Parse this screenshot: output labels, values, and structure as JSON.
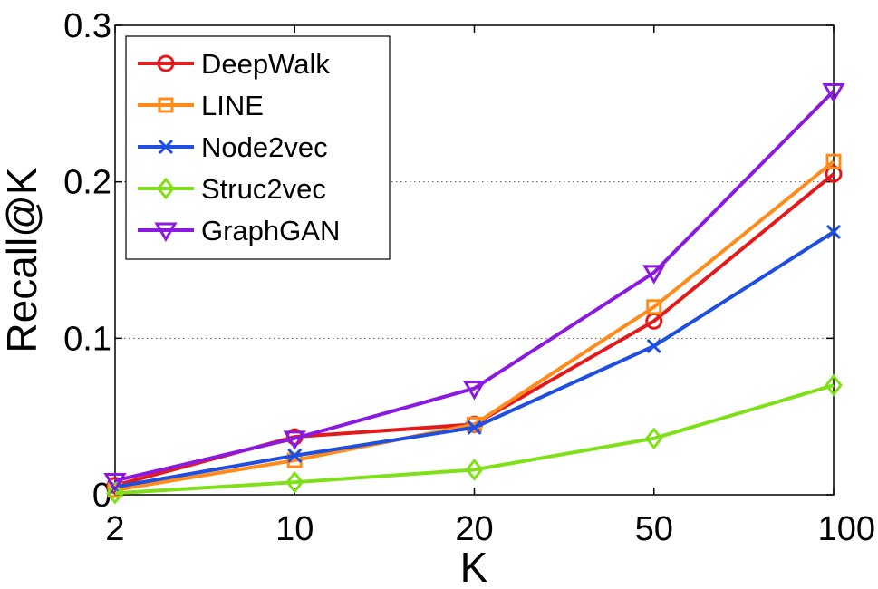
{
  "chart_data": {
    "type": "line",
    "title": "",
    "xlabel": "K",
    "ylabel": "Recall@K",
    "categories": [
      "2",
      "10",
      "20",
      "50",
      "100"
    ],
    "ylim": [
      0,
      0.3
    ],
    "yticks": [
      "0",
      "0.1",
      "0.2",
      "0.3"
    ],
    "yticks_values": [
      0,
      0.1,
      0.2,
      0.3
    ],
    "grid": "y-dotted",
    "legend_position": "top-left",
    "series": [
      {
        "name": "DeepWalk",
        "color": "#e31a1c",
        "marker": "circle",
        "values": [
          0.006,
          0.037,
          0.045,
          0.111,
          0.205
        ]
      },
      {
        "name": "LINE",
        "color": "#ff8c1a",
        "marker": "square",
        "values": [
          0.003,
          0.022,
          0.045,
          0.12,
          0.213
        ]
      },
      {
        "name": "Node2vec",
        "color": "#1f4fe0",
        "marker": "x",
        "values": [
          0.005,
          0.025,
          0.043,
          0.095,
          0.168
        ]
      },
      {
        "name": "Struc2vec",
        "color": "#7fe01a",
        "marker": "diamond",
        "values": [
          0.001,
          0.008,
          0.016,
          0.036,
          0.07
        ]
      },
      {
        "name": "GraphGAN",
        "color": "#8b1ae0",
        "marker": "triangle-down",
        "values": [
          0.009,
          0.036,
          0.068,
          0.142,
          0.258
        ]
      }
    ]
  }
}
